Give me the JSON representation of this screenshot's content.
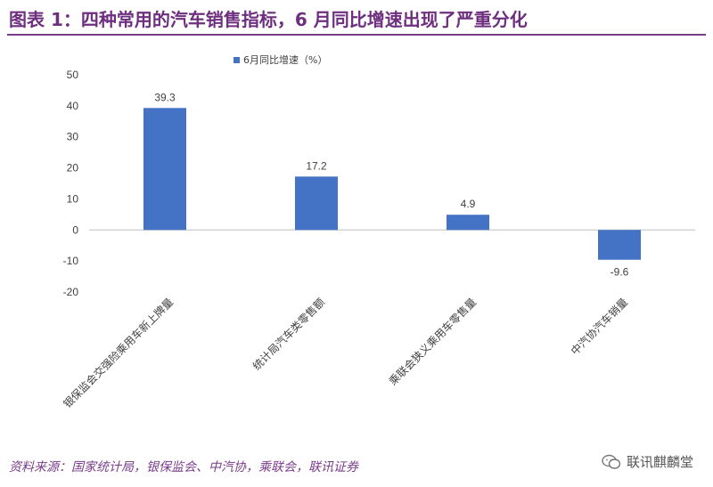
{
  "title": "图表 1：四种常用的汽车销售指标，6 月同比增速出现了严重分化",
  "source": "资料来源：国家统计局，银保监会、中汽协，乘联会，联讯证券",
  "watermark": "联讯麒麟堂",
  "colors": {
    "title": "#6d2f7e",
    "bar": "#4472c4",
    "axis": "#bfbfbf",
    "text": "#404040"
  },
  "chart_data": {
    "type": "bar",
    "categories": [
      "银保监会交强险乘用车新上牌量",
      "统计局汽车类零售额",
      "乘联会狭义乘用车零售量",
      "中汽协汽车销量"
    ],
    "series": [
      {
        "name": "6月同比增速（%）",
        "values": [
          39.3,
          17.2,
          4.9,
          -9.6
        ]
      }
    ],
    "data_labels": [
      "39.3",
      "17.2",
      "4.9",
      "-9.6"
    ],
    "yticks": [
      "50",
      "40",
      "30",
      "20",
      "10",
      "0",
      "-10",
      "-20"
    ],
    "ylim": [
      -20,
      50
    ],
    "legend": "top-center",
    "grid": false
  }
}
